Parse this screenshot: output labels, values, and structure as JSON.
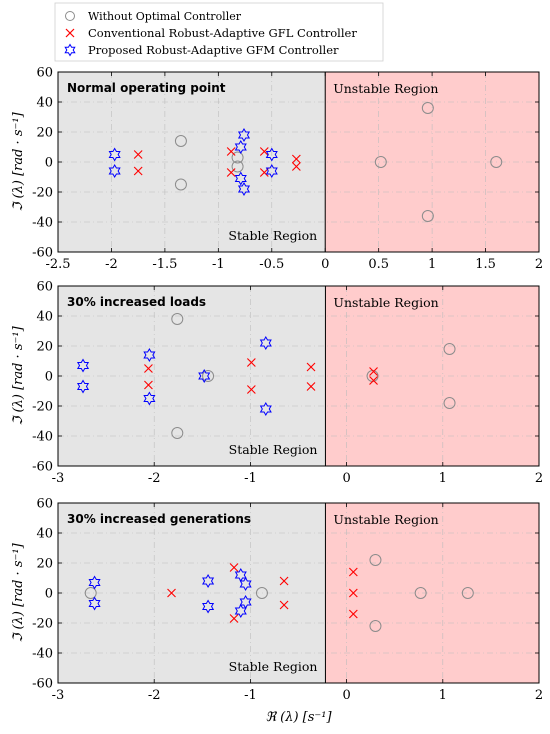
{
  "legend": {
    "items": [
      {
        "label": "Without Optimal Controller",
        "marker": "circle",
        "color": "#8c8c8c"
      },
      {
        "label": "Conventional Robust-Adaptive GFL Controller",
        "marker": "cross",
        "color": "#ff0000"
      },
      {
        "label": "Proposed Robust-Adaptive GFM Controller",
        "marker": "hexagram",
        "color": "#0000ff"
      }
    ]
  },
  "colors": {
    "stable_fill": "#e5e5e5",
    "unstable_fill": "#ffcccc",
    "without_controller": "#8c8c8c",
    "gfl": "#ff0000",
    "gfm": "#0000ff"
  },
  "chart_data": [
    {
      "type": "scatter",
      "panel_title": "Normal operating point",
      "region_labels": {
        "stable": "Stable Region",
        "unstable": "Unstable Region"
      },
      "stability_boundary_x": 0,
      "xlim": [
        -2.5,
        2
      ],
      "ylim": [
        -60,
        60
      ],
      "xticks": [
        -2.5,
        -2,
        -1.5,
        -1,
        -0.5,
        0,
        0.5,
        1,
        1.5,
        2
      ],
      "xticklabels": [
        "-2.5",
        "-2",
        "-1.5",
        "-1",
        "-0.5",
        "0",
        "0.5",
        "1",
        "1.5",
        "2"
      ],
      "yticks": [
        -60,
        -40,
        -20,
        0,
        20,
        40,
        60
      ],
      "yticklabels": [
        "-60",
        "-40",
        "-20",
        "0",
        "20",
        "40",
        "60"
      ],
      "ylabel": "ℑ (λ) [rad · s⁻¹]",
      "grid": true,
      "series": [
        {
          "name": "Without Optimal Controller",
          "marker": "circle",
          "points": [
            [
              -1.35,
              14
            ],
            [
              -1.35,
              -15
            ],
            [
              -0.82,
              3
            ],
            [
              -0.82,
              -3
            ],
            [
              0.52,
              0
            ],
            [
              0.96,
              36
            ],
            [
              0.96,
              -36
            ],
            [
              1.6,
              0
            ]
          ]
        },
        {
          "name": "Conventional Robust-Adaptive GFL Controller",
          "marker": "cross",
          "points": [
            [
              -1.75,
              5
            ],
            [
              -1.75,
              -6
            ],
            [
              -0.88,
              7
            ],
            [
              -0.88,
              -7
            ],
            [
              -0.57,
              7
            ],
            [
              -0.57,
              -7
            ],
            [
              -0.27,
              2
            ],
            [
              -0.27,
              -3
            ]
          ]
        },
        {
          "name": "Proposed Robust-Adaptive GFM Controller",
          "marker": "hexagram",
          "points": [
            [
              -1.97,
              5
            ],
            [
              -1.97,
              -6
            ],
            [
              -0.76,
              18
            ],
            [
              -0.79,
              10
            ],
            [
              -0.79,
              -11
            ],
            [
              -0.76,
              -18
            ],
            [
              -0.5,
              5
            ],
            [
              -0.5,
              -6
            ]
          ]
        }
      ]
    },
    {
      "type": "scatter",
      "panel_title": "30% increased loads",
      "region_labels": {
        "stable": "Stable Region",
        "unstable": "Unstable Region"
      },
      "stability_boundary_x": -0.22,
      "xlim": [
        -3,
        2
      ],
      "ylim": [
        -60,
        60
      ],
      "xticks": [
        -3,
        -2,
        -1,
        0,
        1,
        2
      ],
      "xticklabels": [
        "-3",
        "-2",
        "-1",
        "0",
        "1",
        "2"
      ],
      "yticks": [
        -60,
        -40,
        -20,
        0,
        20,
        40,
        60
      ],
      "yticklabels": [
        "-60",
        "-40",
        "-20",
        "0",
        "20",
        "40",
        "60"
      ],
      "ylabel": "ℑ (λ) [rad · s⁻¹]",
      "grid": true,
      "series": [
        {
          "name": "Without Optimal Controller",
          "marker": "circle",
          "points": [
            [
              -1.76,
              38
            ],
            [
              -1.76,
              -38
            ],
            [
              -1.44,
              0
            ],
            [
              0.27,
              0
            ],
            [
              1.07,
              18
            ],
            [
              1.07,
              -18
            ]
          ]
        },
        {
          "name": "Conventional Robust-Adaptive GFL Controller",
          "marker": "cross",
          "points": [
            [
              -2.06,
              5
            ],
            [
              -2.06,
              -6
            ],
            [
              -0.99,
              9
            ],
            [
              -0.99,
              -9
            ],
            [
              -0.37,
              6
            ],
            [
              -0.37,
              -7
            ],
            [
              0.28,
              3
            ],
            [
              0.28,
              -3
            ]
          ]
        },
        {
          "name": "Proposed Robust-Adaptive GFM Controller",
          "marker": "hexagram",
          "points": [
            [
              -2.74,
              7
            ],
            [
              -2.74,
              -7
            ],
            [
              -2.05,
              14
            ],
            [
              -2.05,
              -15
            ],
            [
              -1.48,
              0
            ],
            [
              -0.84,
              22
            ],
            [
              -0.84,
              -22
            ]
          ]
        }
      ]
    },
    {
      "type": "scatter",
      "panel_title": "30% increased generations",
      "region_labels": {
        "stable": "Stable Region",
        "unstable": "Unstable Region"
      },
      "stability_boundary_x": -0.22,
      "xlim": [
        -3,
        2
      ],
      "ylim": [
        -60,
        60
      ],
      "xticks": [
        -3,
        -2,
        -1,
        0,
        1,
        2
      ],
      "xticklabels": [
        "-3",
        "-2",
        "-1",
        "0",
        "1",
        "2"
      ],
      "yticks": [
        -60,
        -40,
        -20,
        0,
        20,
        40,
        60
      ],
      "yticklabels": [
        "-60",
        "-40",
        "-20",
        "0",
        "20",
        "40",
        "60"
      ],
      "ylabel": "ℑ (λ) [rad · s⁻¹]",
      "xlabel": "ℜ (λ) [s⁻¹]",
      "grid": true,
      "series": [
        {
          "name": "Without Optimal Controller",
          "marker": "circle",
          "points": [
            [
              -2.66,
              0
            ],
            [
              -0.88,
              0
            ],
            [
              0.3,
              22
            ],
            [
              0.3,
              -22
            ],
            [
              0.77,
              0
            ],
            [
              1.26,
              0
            ]
          ]
        },
        {
          "name": "Conventional Robust-Adaptive GFL Controller",
          "marker": "cross",
          "points": [
            [
              -1.82,
              0
            ],
            [
              -1.17,
              17
            ],
            [
              -1.17,
              -17
            ],
            [
              -0.65,
              8
            ],
            [
              -0.65,
              -8
            ],
            [
              0.07,
              14
            ],
            [
              0.07,
              0
            ],
            [
              0.07,
              -14
            ]
          ]
        },
        {
          "name": "Proposed Robust-Adaptive GFM Controller",
          "marker": "hexagram",
          "points": [
            [
              -2.62,
              7
            ],
            [
              -2.62,
              -7
            ],
            [
              -1.44,
              8
            ],
            [
              -1.44,
              -9
            ],
            [
              -1.1,
              12
            ],
            [
              -1.05,
              6
            ],
            [
              -1.05,
              -6
            ],
            [
              -1.1,
              -12
            ]
          ]
        }
      ]
    }
  ]
}
